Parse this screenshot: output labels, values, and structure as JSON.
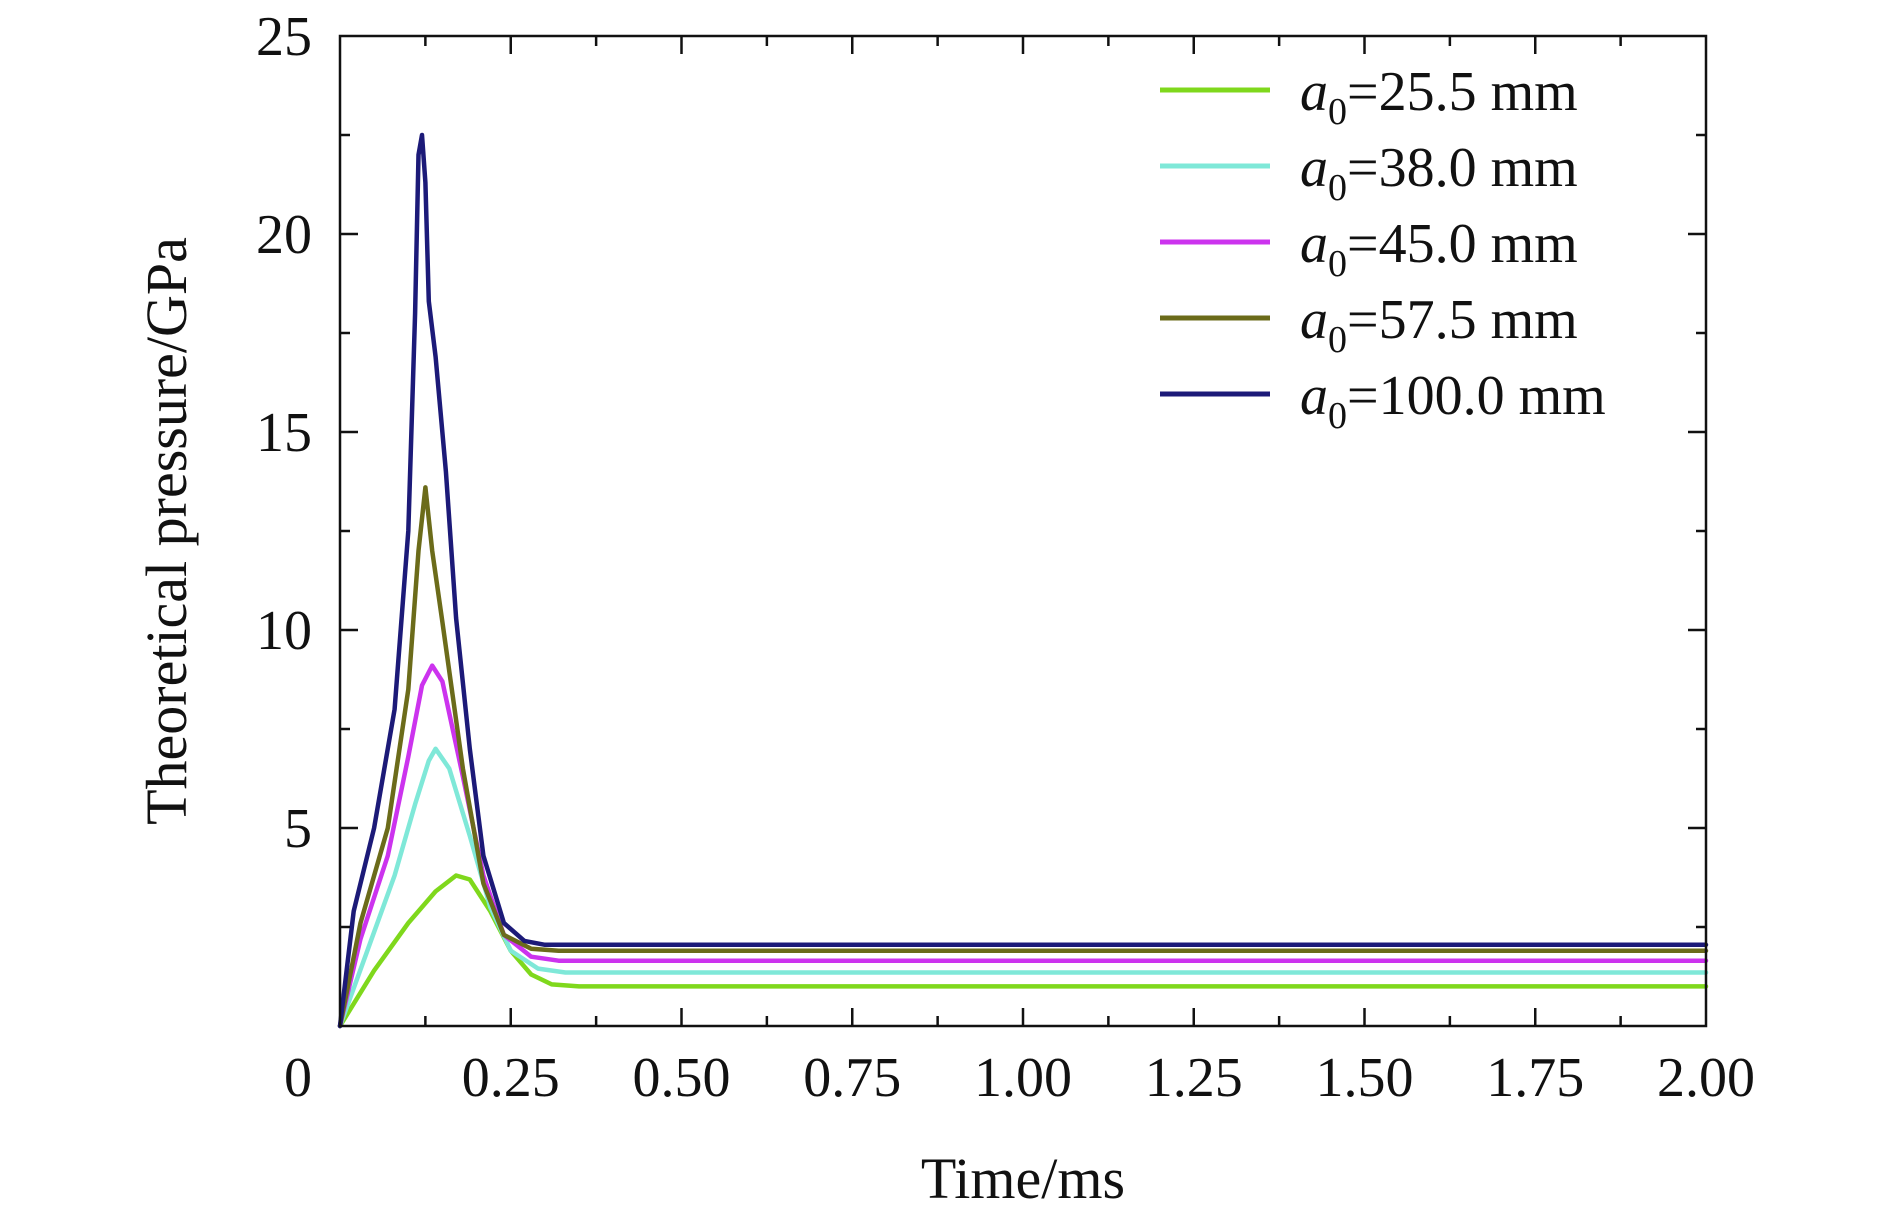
{
  "chart_data": {
    "type": "line",
    "title": "",
    "xlabel": "Time/ms",
    "ylabel": "Theoretical pressure/GPa",
    "xlim": [
      0,
      2.0
    ],
    "ylim": [
      0,
      25
    ],
    "x_ticks": [
      0,
      0.25,
      0.5,
      0.75,
      1.0,
      1.25,
      1.5,
      1.75,
      2.0
    ],
    "x_tick_labels": [
      "0",
      "0.25",
      "0.50",
      "0.75",
      "1.00",
      "1.25",
      "1.50",
      "1.75",
      "2.00"
    ],
    "y_ticks": [
      5,
      10,
      15,
      20,
      25
    ],
    "y_tick_labels": [
      "5",
      "10",
      "15",
      "20",
      "25"
    ],
    "grid": false,
    "legend_position": "top-right",
    "legend_symbol": "a",
    "legend_subscript": "0",
    "series": [
      {
        "name": "=25.5 mm",
        "color": "#7fd81c",
        "points": [
          [
            0,
            0
          ],
          [
            0.05,
            1.4
          ],
          [
            0.1,
            2.6
          ],
          [
            0.14,
            3.4
          ],
          [
            0.17,
            3.8
          ],
          [
            0.19,
            3.7
          ],
          [
            0.22,
            2.9
          ],
          [
            0.25,
            1.9
          ],
          [
            0.28,
            1.3
          ],
          [
            0.31,
            1.05
          ],
          [
            0.35,
            1.0
          ],
          [
            2.0,
            1.0
          ]
        ]
      },
      {
        "name": "=38.0 mm",
        "color": "#7fe8d8",
        "points": [
          [
            0,
            0
          ],
          [
            0.04,
            1.9
          ],
          [
            0.08,
            3.8
          ],
          [
            0.11,
            5.6
          ],
          [
            0.13,
            6.7
          ],
          [
            0.14,
            7.0
          ],
          [
            0.16,
            6.5
          ],
          [
            0.19,
            4.8
          ],
          [
            0.22,
            3.0
          ],
          [
            0.25,
            1.9
          ],
          [
            0.29,
            1.45
          ],
          [
            0.33,
            1.35
          ],
          [
            2.0,
            1.35
          ]
        ]
      },
      {
        "name": "=45.0 mm",
        "color": "#cc33ee",
        "points": [
          [
            0,
            0
          ],
          [
            0.03,
            2.2
          ],
          [
            0.07,
            4.3
          ],
          [
            0.1,
            6.8
          ],
          [
            0.12,
            8.6
          ],
          [
            0.135,
            9.1
          ],
          [
            0.15,
            8.7
          ],
          [
            0.18,
            6.3
          ],
          [
            0.21,
            3.8
          ],
          [
            0.24,
            2.3
          ],
          [
            0.28,
            1.75
          ],
          [
            0.32,
            1.65
          ],
          [
            2.0,
            1.65
          ]
        ]
      },
      {
        "name": "=57.5 mm",
        "color": "#6b6b1a",
        "points": [
          [
            0,
            0
          ],
          [
            0.03,
            2.6
          ],
          [
            0.07,
            5.0
          ],
          [
            0.1,
            8.5
          ],
          [
            0.115,
            12.0
          ],
          [
            0.125,
            13.6
          ],
          [
            0.135,
            12.0
          ],
          [
            0.15,
            10.2
          ],
          [
            0.18,
            6.5
          ],
          [
            0.21,
            3.6
          ],
          [
            0.24,
            2.3
          ],
          [
            0.28,
            1.95
          ],
          [
            0.32,
            1.9
          ],
          [
            2.0,
            1.9
          ]
        ]
      },
      {
        "name": "=100.0 mm",
        "color": "#1c1a78",
        "points": [
          [
            0,
            0
          ],
          [
            0.02,
            2.9
          ],
          [
            0.05,
            5.0
          ],
          [
            0.08,
            8.0
          ],
          [
            0.1,
            12.5
          ],
          [
            0.11,
            18.0
          ],
          [
            0.115,
            22.0
          ],
          [
            0.12,
            22.5
          ],
          [
            0.125,
            21.3
          ],
          [
            0.13,
            18.3
          ],
          [
            0.14,
            16.9
          ],
          [
            0.155,
            14.0
          ],
          [
            0.17,
            10.3
          ],
          [
            0.19,
            7.0
          ],
          [
            0.21,
            4.3
          ],
          [
            0.24,
            2.6
          ],
          [
            0.27,
            2.15
          ],
          [
            0.3,
            2.05
          ],
          [
            2.0,
            2.05
          ]
        ]
      }
    ]
  }
}
